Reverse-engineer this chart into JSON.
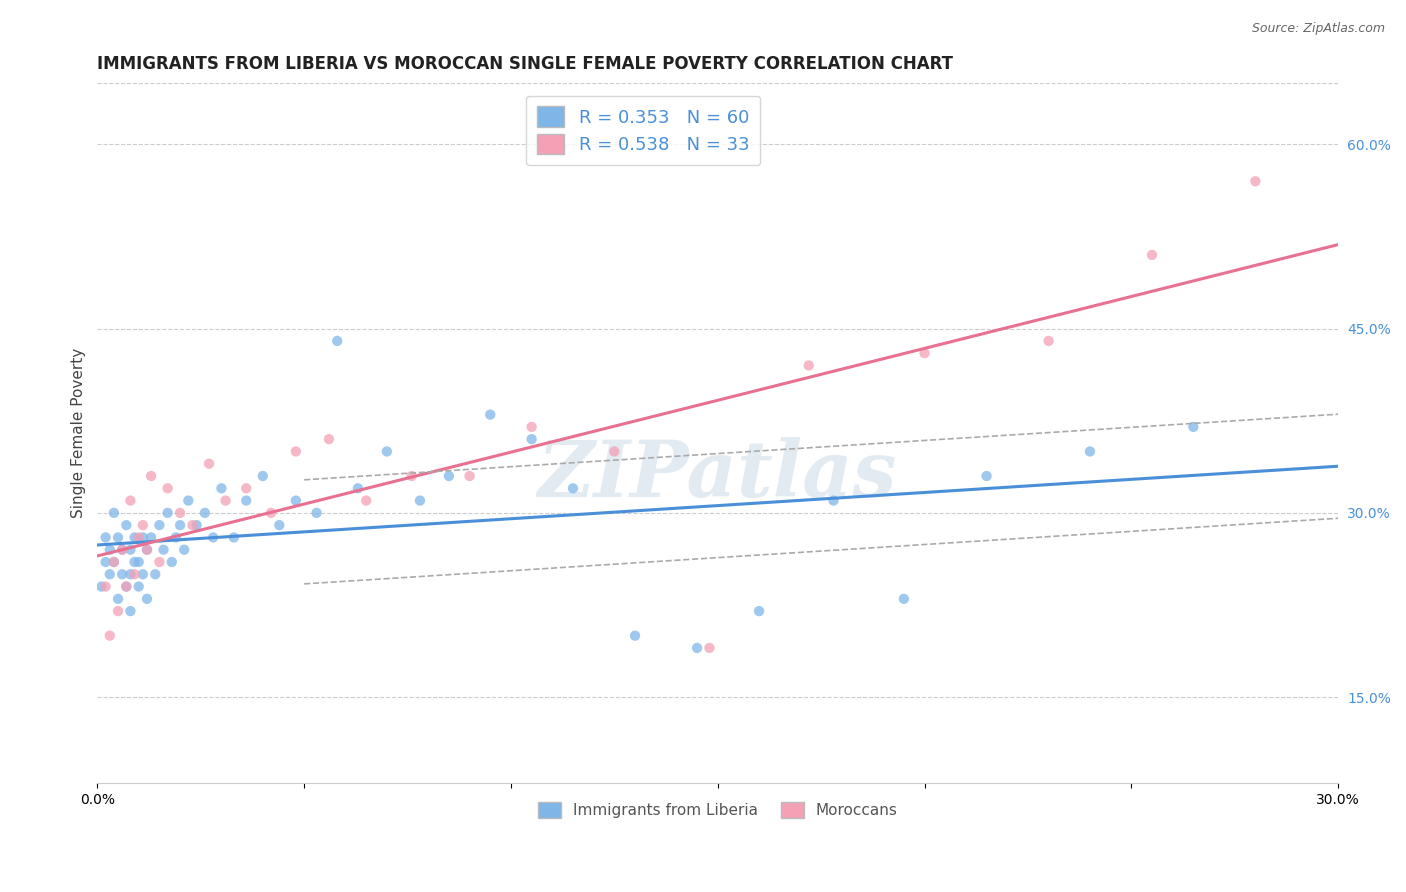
{
  "title": "IMMIGRANTS FROM LIBERIA VS MOROCCAN SINGLE FEMALE POVERTY CORRELATION CHART",
  "source": "Source: ZipAtlas.com",
  "ylabel": "Single Female Poverty",
  "xlim": [
    0.0,
    0.3
  ],
  "ylim": [
    0.08,
    0.65
  ],
  "xticks": [
    0.0,
    0.05,
    0.1,
    0.15,
    0.2,
    0.25,
    0.3
  ],
  "xticklabels": [
    "0.0%",
    "",
    "",
    "",
    "",
    "",
    "30.0%"
  ],
  "yticks_right": [
    0.15,
    0.3,
    0.45,
    0.6
  ],
  "ytick_right_labels": [
    "15.0%",
    "30.0%",
    "45.0%",
    "60.0%"
  ],
  "R_liberia": 0.353,
  "N_liberia": 60,
  "R_moroccan": 0.538,
  "N_moroccan": 33,
  "color_liberia": "#7EB6E8",
  "color_moroccan": "#F4A0B5",
  "line_color_liberia": "#4A90D9",
  "line_color_moroccan": "#E87090",
  "line_color_ci": "#AAAAAA",
  "watermark": "ZIPatlas",
  "background_color": "#FFFFFF",
  "liberia_points_x": [
    0.001,
    0.002,
    0.002,
    0.003,
    0.003,
    0.004,
    0.004,
    0.005,
    0.005,
    0.006,
    0.006,
    0.007,
    0.007,
    0.008,
    0.008,
    0.008,
    0.009,
    0.009,
    0.01,
    0.01,
    0.011,
    0.011,
    0.012,
    0.012,
    0.013,
    0.014,
    0.015,
    0.016,
    0.017,
    0.018,
    0.019,
    0.02,
    0.021,
    0.022,
    0.024,
    0.026,
    0.028,
    0.03,
    0.033,
    0.036,
    0.04,
    0.044,
    0.048,
    0.053,
    0.058,
    0.063,
    0.07,
    0.078,
    0.085,
    0.095,
    0.105,
    0.115,
    0.13,
    0.145,
    0.16,
    0.178,
    0.195,
    0.215,
    0.24,
    0.265
  ],
  "liberia_points_y": [
    0.24,
    0.26,
    0.28,
    0.25,
    0.27,
    0.3,
    0.26,
    0.28,
    0.23,
    0.25,
    0.27,
    0.24,
    0.29,
    0.25,
    0.27,
    0.22,
    0.26,
    0.28,
    0.24,
    0.26,
    0.25,
    0.28,
    0.27,
    0.23,
    0.28,
    0.25,
    0.29,
    0.27,
    0.3,
    0.26,
    0.28,
    0.29,
    0.27,
    0.31,
    0.29,
    0.3,
    0.28,
    0.32,
    0.28,
    0.31,
    0.33,
    0.29,
    0.31,
    0.3,
    0.44,
    0.32,
    0.35,
    0.31,
    0.33,
    0.38,
    0.36,
    0.32,
    0.2,
    0.19,
    0.22,
    0.31,
    0.23,
    0.33,
    0.35,
    0.37
  ],
  "moroccan_points_x": [
    0.002,
    0.003,
    0.004,
    0.005,
    0.006,
    0.007,
    0.008,
    0.009,
    0.01,
    0.011,
    0.012,
    0.013,
    0.015,
    0.017,
    0.02,
    0.023,
    0.027,
    0.031,
    0.036,
    0.042,
    0.048,
    0.056,
    0.065,
    0.076,
    0.09,
    0.105,
    0.125,
    0.148,
    0.172,
    0.2,
    0.23,
    0.255,
    0.28
  ],
  "moroccan_points_y": [
    0.24,
    0.2,
    0.26,
    0.22,
    0.27,
    0.24,
    0.31,
    0.25,
    0.28,
    0.29,
    0.27,
    0.33,
    0.26,
    0.32,
    0.3,
    0.29,
    0.34,
    0.31,
    0.32,
    0.3,
    0.35,
    0.36,
    0.31,
    0.33,
    0.33,
    0.37,
    0.35,
    0.19,
    0.42,
    0.43,
    0.44,
    0.51,
    0.57
  ]
}
